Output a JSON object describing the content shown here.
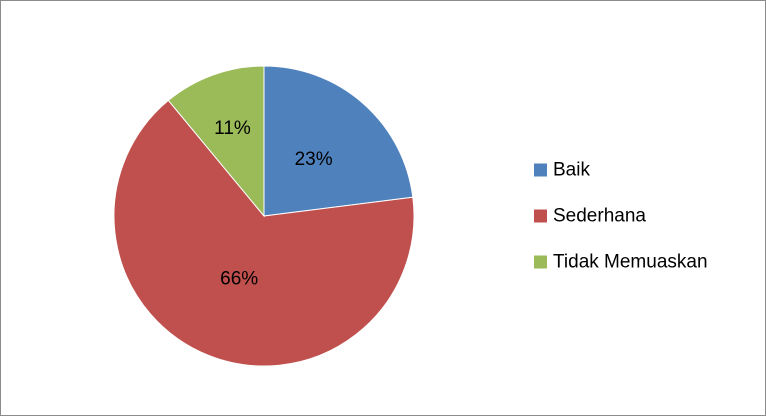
{
  "chart_data": {
    "type": "pie",
    "title": "",
    "categories": [
      "Baik",
      "Sederhana",
      "Tidak Memuaskan"
    ],
    "values": [
      23,
      66,
      11
    ],
    "labels": [
      "23%",
      "66%",
      "11%"
    ],
    "colors": [
      "#4F81BD",
      "#C0504D",
      "#9BBB59"
    ],
    "legend_position": "right",
    "start_angle": "12 o'clock",
    "direction": "clockwise"
  }
}
